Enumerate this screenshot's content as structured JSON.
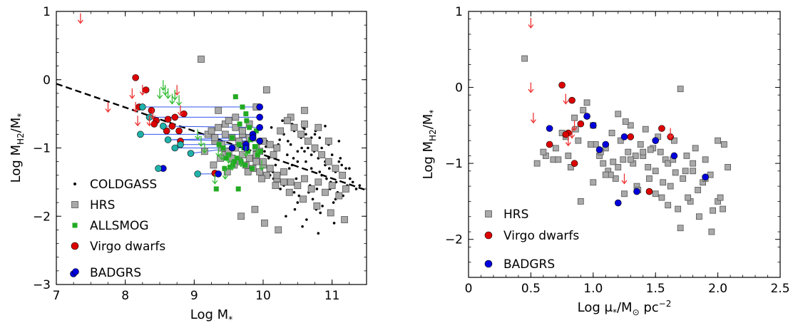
{
  "chart_data": [
    {
      "type": "scatter",
      "xlabel_main": "Log M",
      "xlabel_sub": "*",
      "ylabel_main": "Log M",
      "ylabel_sub1": "H2",
      "ylabel_mid": "/M",
      "ylabel_sub2": "*",
      "xlim": [
        7,
        11.5
      ],
      "ylim": [
        -3,
        1
      ],
      "xticks": [
        "7",
        "8",
        "9",
        "10",
        "11"
      ],
      "xtick_values": [
        7,
        8,
        9,
        10,
        11
      ],
      "yticks": [
        "1",
        "0",
        "−1",
        "−2",
        "−3"
      ],
      "ytick_values": [
        1,
        0,
        -1,
        -2,
        -3
      ],
      "legend_position": "bottom-left",
      "legend": [
        {
          "label": "COLDGASS",
          "marker": "dot"
        },
        {
          "label": "HRS",
          "marker": "square"
        },
        {
          "label": "ALLSMOG",
          "marker": "small-square"
        },
        {
          "label": "Virgo dwarfs",
          "marker": "circle"
        },
        {
          "label": "BADGRS",
          "marker": "double-circle"
        }
      ],
      "fit_line": {
        "x": [
          7.0,
          11.5
        ],
        "y": [
          -0.06,
          -1.62
        ]
      },
      "colors": {
        "hrs": "#a9a9a9",
        "allsmog": "#22aa22",
        "virgo": "#dd0000",
        "badgrs": "#0000dd",
        "badgrs_low": "#20b2aa",
        "link": "#3355ee",
        "upper_limit_red": "#ee3333",
        "upper_limit_green": "#33bb33"
      },
      "series": [
        {
          "name": "COLDGASS",
          "x": [
            10.05,
            10.12,
            10.2,
            10.3,
            10.35,
            10.4,
            10.45,
            10.5,
            10.55,
            10.6,
            10.65,
            10.7,
            10.75,
            10.8,
            10.85,
            10.9,
            10.95,
            11.0,
            11.05,
            11.1,
            11.15,
            11.2,
            10.08,
            10.18,
            10.28,
            10.38,
            10.48,
            10.58,
            10.68,
            10.78,
            10.88,
            10.98,
            11.08,
            10.02,
            10.14,
            10.26,
            10.42,
            10.52,
            10.62,
            10.72,
            10.82,
            10.92,
            11.02,
            11.12,
            11.22,
            10.1,
            10.25,
            10.36,
            10.46,
            10.56,
            10.66,
            10.76,
            10.86,
            10.96,
            11.06,
            11.16,
            11.26,
            10.33,
            10.63,
            10.83,
            11.03,
            10.22,
            10.5,
            10.7,
            10.9,
            10.57,
            10.77,
            10.97,
            10.42,
            10.62,
            10.82,
            10.15,
            10.3,
            10.45,
            10.65,
            10.85,
            11.05,
            11.25,
            10.04,
            10.24,
            10.44,
            10.74,
            10.94,
            11.14,
            11.3,
            11.35,
            11.4,
            10.6,
            10.9,
            11.1,
            10.8,
            10.5,
            10.7
          ],
          "y": [
            -0.9,
            -0.7,
            -1.0,
            -0.8,
            -1.1,
            -0.95,
            -0.75,
            -1.2,
            -0.85,
            -1.05,
            -0.9,
            -1.3,
            -0.8,
            -1.15,
            -1.0,
            -1.25,
            -0.95,
            -1.1,
            -1.35,
            -1.2,
            -1.4,
            -1.3,
            -1.15,
            -1.25,
            -0.6,
            -1.3,
            -1.45,
            -0.7,
            -1.55,
            -1.6,
            -1.1,
            -1.5,
            -1.65,
            -1.05,
            -1.35,
            -1.5,
            -0.65,
            -1.7,
            -1.2,
            -1.75,
            -0.85,
            -1.45,
            -1.8,
            -1.15,
            -1.55,
            -1.4,
            -1.6,
            -0.9,
            -1.9,
            -1.0,
            -1.65,
            -0.75,
            -1.85,
            -1.3,
            -1.5,
            -1.7,
            -1.45,
            -2.0,
            -2.05,
            -1.95,
            -2.1,
            -0.95,
            -1.05,
            -0.85,
            -1.2,
            -2.15,
            -1.9,
            -1.6,
            -1.25,
            -0.8,
            -1.35,
            -1.45,
            -1.55,
            -1.65,
            -1.0,
            -1.4,
            -1.75,
            -1.3,
            -0.98,
            -0.88,
            -1.15,
            -1.05,
            -0.92,
            -1.25,
            -1.5,
            -1.6,
            -1.55,
            -0.72,
            -0.68,
            -0.9,
            -2.25,
            -1.8,
            -1.1
          ]
        },
        {
          "name": "HRS",
          "x": [
            9.1,
            9.35,
            9.45,
            9.6,
            9.8,
            9.9,
            10.05,
            10.25,
            10.4,
            10.6,
            10.8,
            10.95,
            10.6,
            9.55,
            9.65,
            9.7,
            9.75,
            9.85,
            9.9,
            9.95,
            10.0,
            10.1,
            10.15,
            10.2,
            9.3,
            9.4,
            9.45,
            9.5,
            9.55,
            9.6,
            9.65,
            9.7,
            9.75,
            9.8,
            9.85,
            9.9,
            9.95,
            10.0,
            10.05,
            10.1,
            10.2,
            10.3,
            10.4,
            10.5,
            10.6,
            10.7,
            10.8,
            10.9,
            11.0,
            11.1,
            11.2,
            9.2,
            9.25,
            9.3,
            9.35,
            9.4,
            9.45,
            10.35,
            10.45,
            10.55,
            10.65,
            10.75,
            10.85,
            10.95,
            11.05,
            11.15,
            9.5,
            9.6,
            9.7,
            9.8,
            9.9,
            10.0,
            10.1,
            10.2,
            10.3,
            9.15,
            9.38,
            9.58,
            9.78,
            9.98,
            10.18,
            10.38,
            10.58,
            10.78,
            10.98,
            11.18,
            9.88,
            9.68,
            10.02,
            10.22,
            9.28,
            9.48
          ],
          "y": [
            0.3,
            -0.45,
            -0.65,
            -0.55,
            -0.65,
            -0.4,
            -0.15,
            -0.75,
            -0.55,
            -0.45,
            -0.7,
            -0.9,
            -0.65,
            -0.85,
            -0.9,
            -0.8,
            -0.95,
            -0.85,
            -1.0,
            -1.05,
            -0.9,
            -0.95,
            -1.1,
            -1.0,
            -0.9,
            -1.0,
            -1.1,
            -1.05,
            -1.15,
            -1.0,
            -1.2,
            -1.1,
            -1.25,
            -1.15,
            -1.3,
            -1.2,
            -1.35,
            -1.25,
            -1.4,
            -1.3,
            -1.45,
            -1.35,
            -1.5,
            -1.55,
            -1.45,
            -1.6,
            -1.5,
            -1.65,
            -1.55,
            -1.7,
            -1.6,
            -0.8,
            -0.75,
            -0.85,
            -0.7,
            -0.95,
            -0.8,
            -0.6,
            -0.7,
            -0.8,
            -0.9,
            -1.0,
            -1.1,
            -1.2,
            -1.3,
            -1.4,
            -0.6,
            -0.7,
            -0.75,
            -0.85,
            -1.1,
            -1.2,
            -1.3,
            -1.4,
            -1.5,
            -1.05,
            -1.15,
            -1.25,
            -1.35,
            -1.45,
            -1.55,
            -1.65,
            -1.75,
            -1.85,
            -1.95,
            -2.05,
            -1.9,
            -2.0,
            -2.1,
            -2.2,
            -1.25,
            -1.35
          ]
        },
        {
          "name": "ALLSMOG",
          "x": [
            9.6,
            9.7,
            9.75,
            9.8,
            9.85,
            9.9,
            9.95,
            9.55,
            9.65,
            9.72,
            9.78,
            9.82,
            9.88,
            9.92,
            9.62,
            9.68,
            9.74,
            9.84,
            9.42,
            9.5,
            9.58,
            9.36,
            9.46,
            9.56,
            9.66,
            9.76,
            9.86,
            9.96,
            9.32,
            9.44,
            9.52,
            9.64
          ],
          "y": [
            -0.25,
            -0.4,
            -0.5,
            -0.7,
            -0.8,
            -0.75,
            -0.9,
            -0.85,
            -0.95,
            -1.0,
            -1.05,
            -0.88,
            -0.98,
            -1.1,
            -1.15,
            -1.2,
            -1.25,
            -1.3,
            -1.0,
            -1.1,
            -1.2,
            -0.95,
            -1.15,
            -1.25,
            -0.65,
            -0.6,
            -0.85,
            -1.05,
            -1.6,
            -1.3,
            -1.28,
            -1.6
          ]
        },
        {
          "name": "Virgo dwarfs",
          "x": [
            8.15,
            8.3,
            8.2,
            8.38,
            8.45,
            8.62,
            8.72,
            8.78,
            8.85,
            8.42,
            8.68,
            8.6,
            8.8,
            9.3
          ],
          "y": [
            0.03,
            -0.15,
            -0.4,
            -0.45,
            -0.6,
            -0.58,
            -0.55,
            -0.75,
            -0.5,
            -0.65,
            -0.68,
            -0.75,
            -0.9,
            -1.37
          ]
        },
        {
          "name": "BADGRS",
          "x": [
            9.95,
            9.95,
            9.95,
            9.85,
            9.85,
            9.75,
            9.75,
            9.55,
            9.35,
            9.95,
            8.55
          ],
          "y": [
            -0.4,
            -0.55,
            -0.7,
            -0.8,
            -0.85,
            -0.95,
            -1.0,
            -1.0,
            -1.38,
            -0.9,
            -1.3
          ]
        },
        {
          "name": "BADGRS-low",
          "x": [
            8.25,
            8.35,
            8.55,
            8.22,
            8.62,
            8.8,
            8.72,
            8.95,
            9.05,
            8.48
          ],
          "y": [
            -0.4,
            -0.55,
            -0.68,
            -0.8,
            -0.88,
            -0.95,
            -1.0,
            -1.08,
            -1.38,
            -1.3
          ]
        }
      ],
      "upper_limits": {
        "red": {
          "x": [
            7.35,
            7.75,
            8.1,
            8.15,
            8.18,
            8.25,
            8.35,
            8.4,
            8.75,
            8.8
          ],
          "y": [
            0.9,
            -0.4,
            -0.2,
            -0.4,
            -0.6,
            -0.15,
            -0.6,
            -0.5,
            -0.15,
            -0.45
          ]
        },
        "green": {
          "x": [
            8.55,
            8.58,
            8.62,
            8.68,
            8.72,
            8.78,
            8.5,
            9.05,
            9.1,
            9.15,
            9.35,
            9.4,
            9.5,
            9.75,
            9.3,
            9.45,
            9.55,
            9.68,
            9.92,
            9.98
          ],
          "y": [
            -0.08,
            -0.15,
            -0.2,
            -0.28,
            -0.22,
            -0.3,
            -0.2,
            -0.8,
            -0.9,
            -1.0,
            -1.05,
            -1.1,
            -1.15,
            -1.05,
            -1.45,
            -1.38,
            -1.25,
            -1.2,
            -1.0,
            -1.25
          ]
        }
      }
    },
    {
      "type": "scatter",
      "xlabel_main": "Log μ",
      "xlabel_sub": "*",
      "xlabel_rest": "/M",
      "xlabel_sun": "⊙",
      "xlabel_unit": " pc",
      "xlabel_exp": "−2",
      "ylabel_main": "Log M",
      "ylabel_sub1": "H2",
      "ylabel_mid": "/M",
      "ylabel_sub2": "*",
      "xlim": [
        0,
        2.5
      ],
      "ylim": [
        -2.5,
        1
      ],
      "xticks": [
        "0",
        "0.5",
        "1.0",
        "1.5",
        "2.0",
        "2.5"
      ],
      "xtick_values": [
        0,
        0.5,
        1.0,
        1.5,
        2.0,
        2.5
      ],
      "yticks": [
        "1",
        "0",
        "−1",
        "−2"
      ],
      "ytick_values": [
        1,
        0,
        -1,
        -2
      ],
      "legend_position": "bottom-left",
      "legend": [
        {
          "label": "HRS",
          "marker": "square"
        },
        {
          "label": "Virgo dwarfs",
          "marker": "circle"
        },
        {
          "label": "BADGRS",
          "marker": "circle"
        }
      ],
      "series": [
        {
          "name": "HRS",
          "x": [
            0.45,
            0.55,
            0.62,
            0.7,
            0.75,
            0.8,
            0.85,
            0.88,
            0.9,
            0.95,
            1.0,
            1.02,
            1.05,
            1.08,
            1.1,
            1.12,
            1.15,
            1.18,
            1.2,
            1.22,
            1.25,
            1.28,
            1.3,
            1.32,
            1.35,
            1.38,
            1.4,
            1.42,
            1.45,
            1.48,
            1.5,
            1.52,
            1.55,
            1.58,
            1.6,
            1.62,
            1.65,
            1.68,
            1.7,
            1.72,
            1.75,
            1.78,
            1.8,
            1.82,
            1.85,
            1.88,
            1.9,
            1.95,
            2.0,
            2.02,
            2.05,
            2.08,
            0.6,
            0.68,
            0.78,
            0.82,
            0.92,
            0.98,
            1.06,
            1.14,
            1.24,
            1.34,
            1.44,
            1.54,
            1.64,
            1.74,
            1.84,
            1.94,
            2.04,
            1.0,
            1.1,
            1.2,
            1.3,
            1.4,
            1.5,
            1.6,
            1.7,
            1.8,
            1.9,
            2.0,
            0.72,
            0.86,
            1.16,
            1.36,
            1.56,
            1.76,
            1.96,
            1.46,
            1.26,
            1.66
          ],
          "y": [
            0.38,
            -1.0,
            -0.9,
            -0.8,
            -0.6,
            -0.9,
            -0.4,
            -0.7,
            -1.5,
            -0.2,
            -0.5,
            -0.75,
            -0.9,
            -1.0,
            -0.8,
            -1.1,
            -0.6,
            -1.2,
            -0.35,
            -0.7,
            -1.4,
            -0.85,
            -0.5,
            -1.0,
            -1.3,
            -0.75,
            -0.9,
            -0.55,
            -1.2,
            -0.8,
            -1.1,
            -0.65,
            -1.45,
            -0.95,
            -1.0,
            -1.3,
            -0.7,
            -1.6,
            -0.02,
            -1.2,
            -0.9,
            -1.5,
            -1.1,
            -0.8,
            -1.7,
            -1.25,
            -0.95,
            -1.9,
            -1.5,
            -1.45,
            -0.75,
            -1.05,
            -0.85,
            -0.95,
            -0.65,
            -1.05,
            -0.3,
            -0.75,
            -0.85,
            -1.15,
            -0.95,
            -0.9,
            -1.05,
            -0.85,
            -0.95,
            -1.1,
            -1.35,
            -1.15,
            -1.6,
            -1.25,
            -1.15,
            -1.05,
            -0.95,
            -0.85,
            -1.4,
            -1.55,
            -1.85,
            -1.0,
            -1.2,
            -0.7,
            -0.95,
            -0.55,
            -0.98,
            -1.35,
            -1.25,
            -1.45,
            -1.62,
            -0.82,
            -0.45,
            -1.12
          ]
        },
        {
          "name": "Virgo dwarfs",
          "x": [
            0.75,
            0.8,
            0.83,
            0.9,
            0.65,
            0.78,
            0.85,
            1.3,
            1.55,
            1.62,
            1.45
          ],
          "y": [
            0.03,
            -0.6,
            -0.17,
            -0.48,
            -0.75,
            -0.62,
            -1.0,
            -0.65,
            -0.54,
            -0.65,
            -1.37
          ]
        },
        {
          "name": "BADGRS",
          "x": [
            0.65,
            0.95,
            1.05,
            1.1,
            1.25,
            1.35,
            1.5,
            1.65,
            1.9,
            1.2,
            1.0
          ],
          "y": [
            -0.54,
            -0.38,
            -0.82,
            -0.75,
            -0.65,
            -1.37,
            -0.7,
            -0.9,
            -1.18,
            -1.52,
            -0.5
          ]
        }
      ],
      "upper_limits": {
        "red": {
          "x": [
            0.5,
            0.5,
            0.52,
            0.78,
            0.8,
            0.85,
            0.83,
            1.25,
            1.62
          ],
          "y": [
            0.85,
            0.0,
            -0.4,
            -0.15,
            -0.7,
            -0.5,
            -0.6,
            -1.2,
            -0.6
          ]
        }
      }
    }
  ]
}
